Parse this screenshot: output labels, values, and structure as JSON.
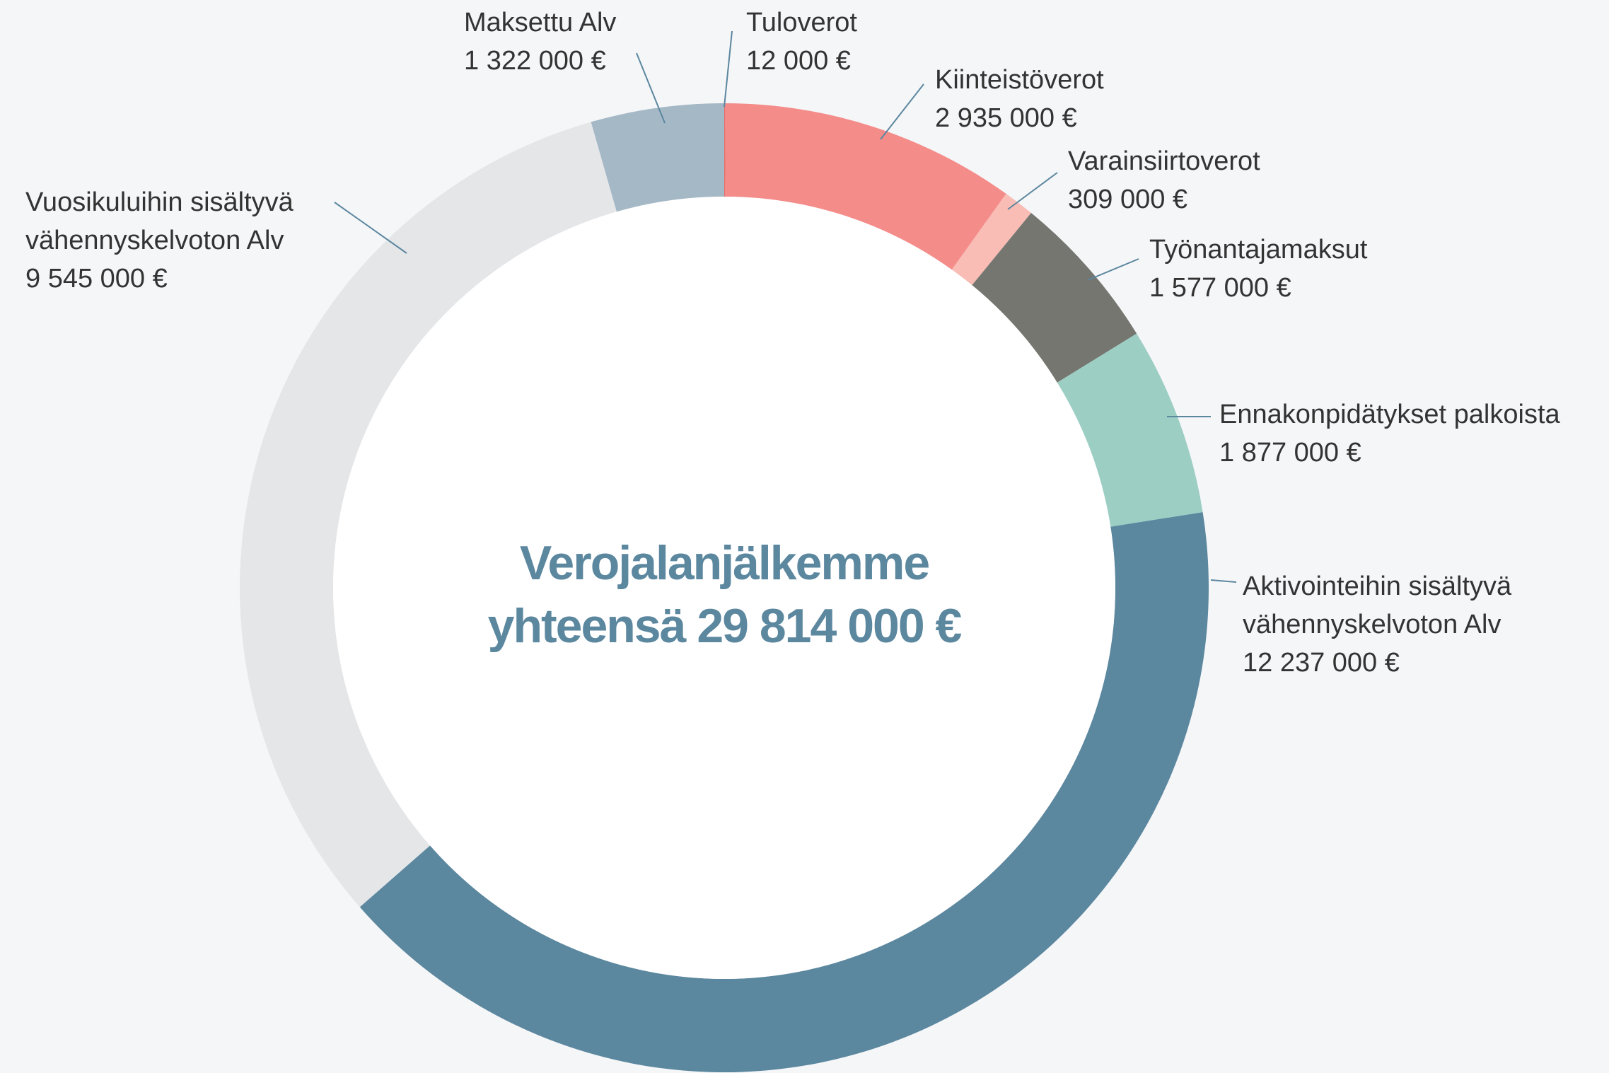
{
  "chart_data": {
    "type": "donut",
    "center_text": [
      "Verojalanjälkemme",
      "yhteensä 29 814 000 €"
    ],
    "categories": [
      "Tuloverot",
      "Kiinteistöverot",
      "Varainsiirtoverot",
      "Työnantajamaksut",
      "Ennakonpidätykset palkoista",
      "Aktivointeihin sisältyvä vähennyskelvoton Alv",
      "Vuosikuluihin sisältyvä vähennyskelvoton Alv",
      "Maksettu Alv"
    ],
    "values": [
      12000,
      2935000,
      309000,
      1577000,
      1877000,
      12237000,
      9545000,
      1322000
    ],
    "value_labels": [
      "12 000 €",
      "2 935 000 €",
      "309 000 €",
      "1 577 000 €",
      "1 877 000 €",
      "12 237 000 €",
      "9 545 000 €",
      "1 322 000 €"
    ],
    "colors": [
      "#e86f6c",
      "#f48c8a",
      "#f9bdb5",
      "#757670",
      "#9ccec4",
      "#5b879f",
      "#e5e6e8",
      "#a5b8c6"
    ]
  }
}
